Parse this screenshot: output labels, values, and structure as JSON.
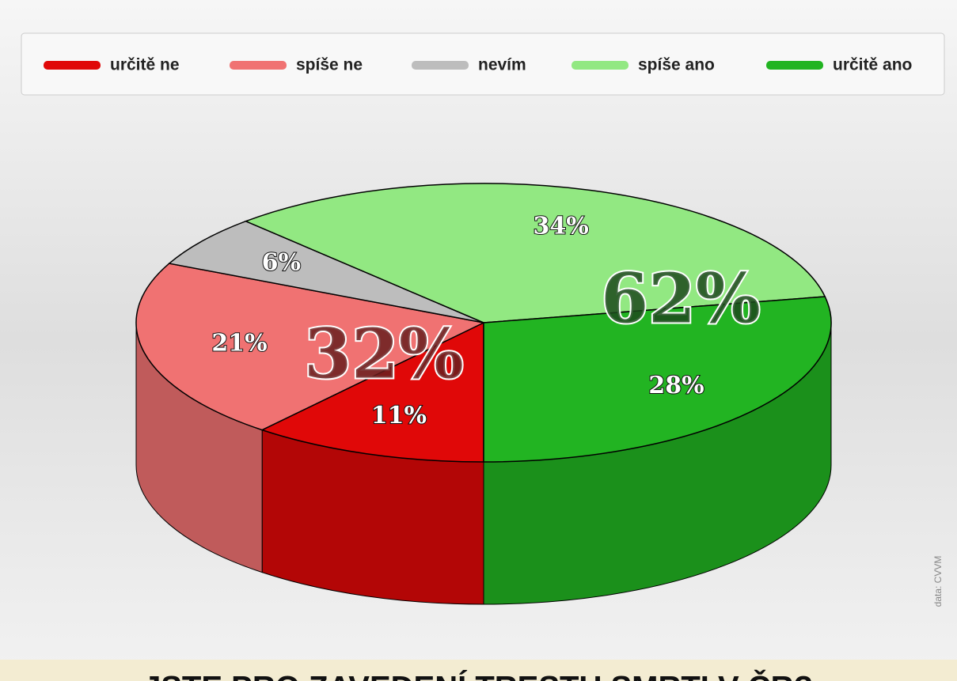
{
  "chart_data": {
    "type": "pie3d",
    "title": "JSTE PRO ZAVEDENÍ TRESTU SMRTI V ČR?",
    "categories": [
      "určitě ne",
      "spíše ne",
      "nevím",
      "spíše ano",
      "určitě ano"
    ],
    "values": [
      11,
      21,
      6,
      34,
      28
    ],
    "value_labels": [
      "11%",
      "21%",
      "6%",
      "34%",
      "28%"
    ],
    "colors": [
      "#e00808",
      "#f07272",
      "#bdbdbd",
      "#92e882",
      "#22b422"
    ],
    "annotations": [
      "32%",
      "62%",
      "data: CVVM"
    ],
    "legend": "top"
  }
}
